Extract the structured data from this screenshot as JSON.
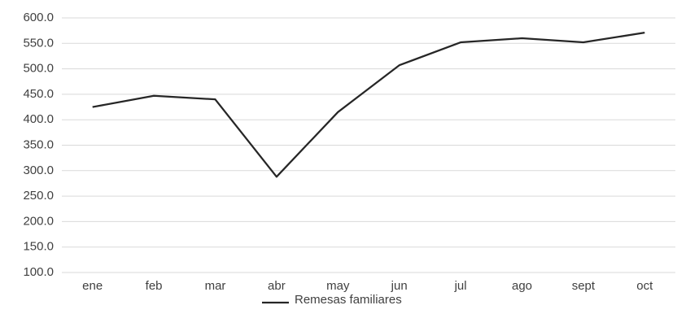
{
  "chart_data": {
    "type": "line",
    "categories": [
      "ene",
      "feb",
      "mar",
      "abr",
      "may",
      "jun",
      "jul",
      "ago",
      "sept",
      "oct"
    ],
    "series": [
      {
        "name": "Remesas familiares",
        "color": "#262626",
        "values": [
          425,
          447,
          440,
          288,
          415,
          507,
          552,
          560,
          552,
          571
        ]
      }
    ],
    "ylim": [
      100,
      600
    ],
    "yticks": [
      {
        "value": 100,
        "label": "100.0"
      },
      {
        "value": 150,
        "label": "150.0"
      },
      {
        "value": 200,
        "label": "200.0"
      },
      {
        "value": 250,
        "label": "250.0"
      },
      {
        "value": 300,
        "label": "300.0"
      },
      {
        "value": 350,
        "label": "350.0"
      },
      {
        "value": 400,
        "label": "400.0"
      },
      {
        "value": 450,
        "label": "450.0"
      },
      {
        "value": 500,
        "label": "500.0"
      },
      {
        "value": 550,
        "label": "550.0"
      },
      {
        "value": 600,
        "label": "600.0"
      }
    ],
    "grid": true,
    "legend": "bottom"
  }
}
